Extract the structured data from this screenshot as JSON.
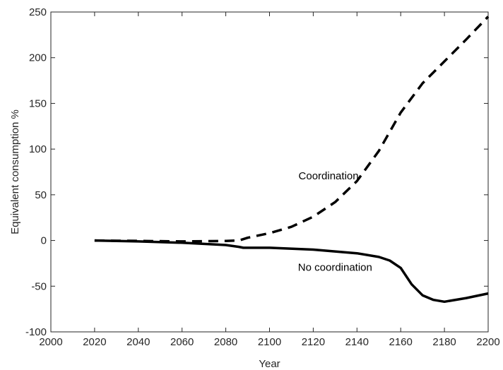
{
  "chart_data": {
    "type": "line",
    "title": "",
    "xlabel": "Year",
    "ylabel": "Equivalent consumption %",
    "xlim": [
      2000,
      2200
    ],
    "ylim": [
      -100,
      250
    ],
    "xticks": [
      2000,
      2020,
      2040,
      2060,
      2080,
      2100,
      2120,
      2140,
      2160,
      2180,
      2200
    ],
    "yticks": [
      -100,
      -50,
      0,
      50,
      100,
      150,
      200,
      250
    ],
    "grid": false,
    "legend": "none",
    "series": [
      {
        "style": "dashed",
        "color": "#000000",
        "x": [
          2020,
          2040,
          2060,
          2080,
          2086,
          2090,
          2100,
          2110,
          2120,
          2130,
          2140,
          2150,
          2160,
          2170,
          2180,
          2190,
          2200
        ],
        "y": [
          0,
          -0.5,
          -1,
          -0.5,
          0,
          3,
          8,
          15,
          26,
          42,
          65,
          98,
          140,
          172,
          196,
          220,
          245
        ]
      },
      {
        "style": "solid",
        "color": "#000000",
        "x": [
          2020,
          2040,
          2060,
          2080,
          2086,
          2088,
          2100,
          2120,
          2140,
          2150,
          2155,
          2160,
          2165,
          2170,
          2175,
          2180,
          2190,
          2200
        ],
        "y": [
          0,
          -1,
          -2.5,
          -5,
          -7,
          -8,
          -8,
          -10,
          -14,
          -18,
          -22,
          -30,
          -48,
          -60,
          -65,
          -67,
          -63,
          -58
        ]
      }
    ],
    "annotations": [
      {
        "text": "Coordination",
        "x": 2127,
        "y": 67
      },
      {
        "text": "No coordination",
        "x": 2130,
        "y": -33
      }
    ]
  }
}
